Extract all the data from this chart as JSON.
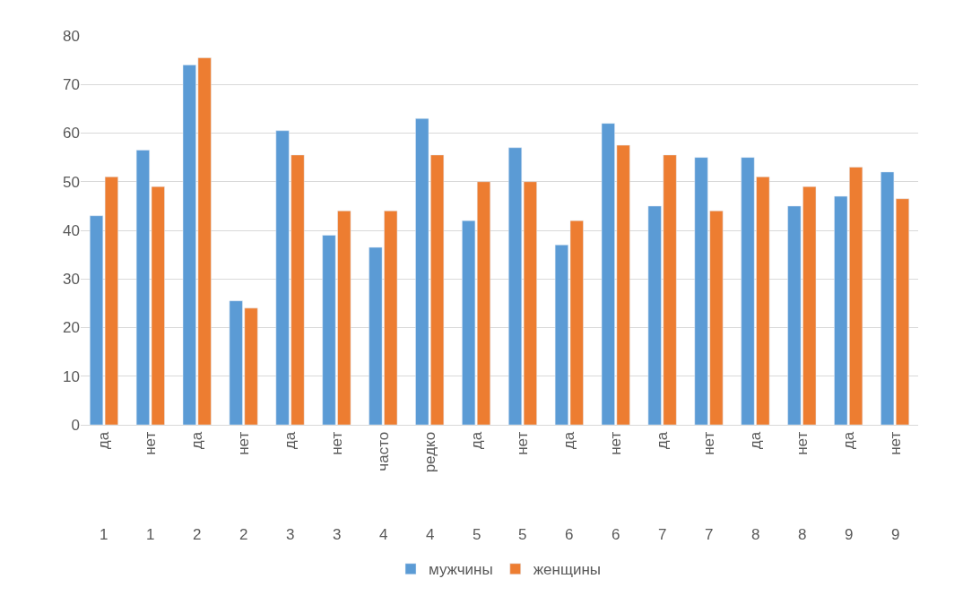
{
  "chart_data": {
    "type": "bar",
    "categories": [
      "да\n1",
      "нет\n1",
      "да\n2",
      "нет\n2",
      "да\n3",
      "нет\n3",
      "часто\n4",
      "редко\n4",
      "да\n5",
      "нет\n5",
      "да\n6",
      "нет\n6",
      "да\n7",
      "нет\n7",
      "да\n8",
      "нет\n8",
      "да\n9",
      "нет\n9"
    ],
    "series": [
      {
        "name": "мужчины",
        "color": "#5b9bd5",
        "values": [
          43,
          56.5,
          74,
          25.5,
          60.5,
          39,
          36.5,
          63,
          42,
          57,
          37,
          62,
          45,
          55,
          55,
          45,
          47,
          52
        ]
      },
      {
        "name": "женщины",
        "color": "#ed7d31",
        "values": [
          51,
          49,
          75.5,
          24,
          55.5,
          44,
          44,
          55.5,
          50,
          50,
          42,
          57.5,
          55.5,
          44,
          51,
          49,
          53,
          46.5
        ]
      }
    ],
    "ylim": [
      0,
      80
    ],
    "yticks": [
      0,
      10,
      20,
      30,
      40,
      50,
      60,
      70,
      80
    ],
    "grid": "y",
    "legend": "bottom"
  }
}
